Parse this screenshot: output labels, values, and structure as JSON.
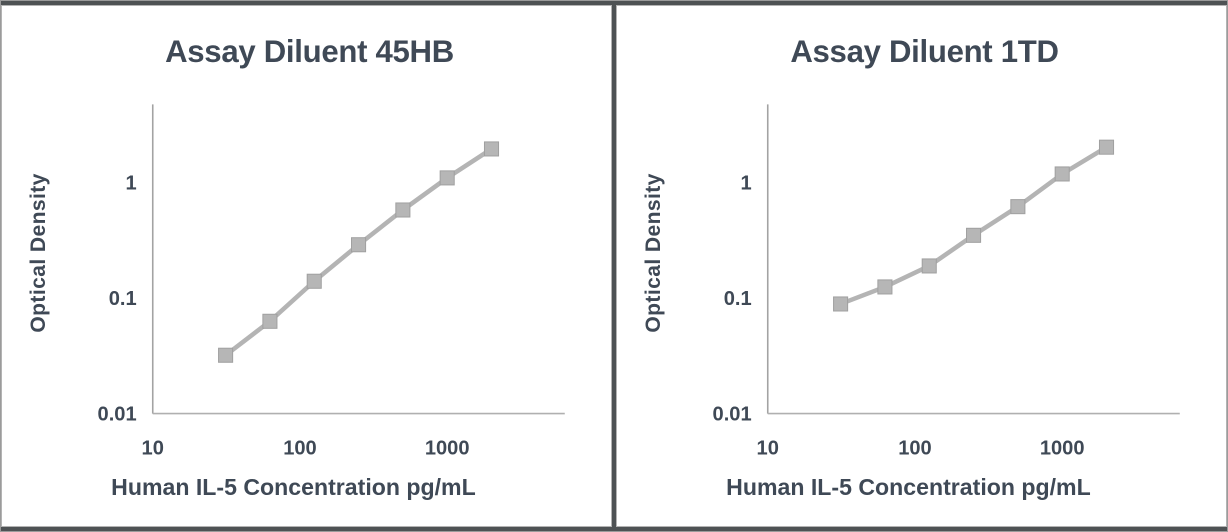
{
  "page": {
    "background_color": "#ffffff",
    "frame_border_color": "#9b9b9b",
    "divider_color": "#4e5254",
    "text_color": "#3f4956",
    "series_color": "#b4b4b4",
    "axis_color": "#b0b0b0"
  },
  "chart_data": [
    {
      "type": "line",
      "title": "Assay Diluent 45HB",
      "xlabel": "Human IL-5 Concentration pg/mL",
      "ylabel": "Optical Density",
      "x_scale": "log",
      "y_scale": "log",
      "x": [
        31.25,
        62.5,
        125,
        250,
        500,
        1000,
        2000
      ],
      "values": [
        0.032,
        0.063,
        0.14,
        0.29,
        0.58,
        1.1,
        1.96
      ],
      "x_ticks": [
        "10",
        "100",
        "1000"
      ],
      "y_ticks": [
        "1",
        "0.1",
        "0.01"
      ],
      "xlim": [
        10,
        8000
      ],
      "ylim": [
        0.01,
        5
      ],
      "grid": false,
      "legend": "none",
      "marker": "square"
    },
    {
      "type": "line",
      "title": "Assay Diluent 1TD",
      "xlabel": "Human IL-5 Concentration pg/mL",
      "ylabel": "Optical Density",
      "x_scale": "log",
      "y_scale": "log",
      "x": [
        31.25,
        62.5,
        125,
        250,
        500,
        1000,
        2000
      ],
      "values": [
        0.089,
        0.125,
        0.19,
        0.35,
        0.62,
        1.19,
        2.03
      ],
      "x_ticks": [
        "10",
        "100",
        "1000"
      ],
      "y_ticks": [
        "1",
        "0.1",
        "0.01"
      ],
      "xlim": [
        10,
        8000
      ],
      "ylim": [
        0.01,
        5
      ],
      "grid": false,
      "legend": "none",
      "marker": "square"
    }
  ]
}
